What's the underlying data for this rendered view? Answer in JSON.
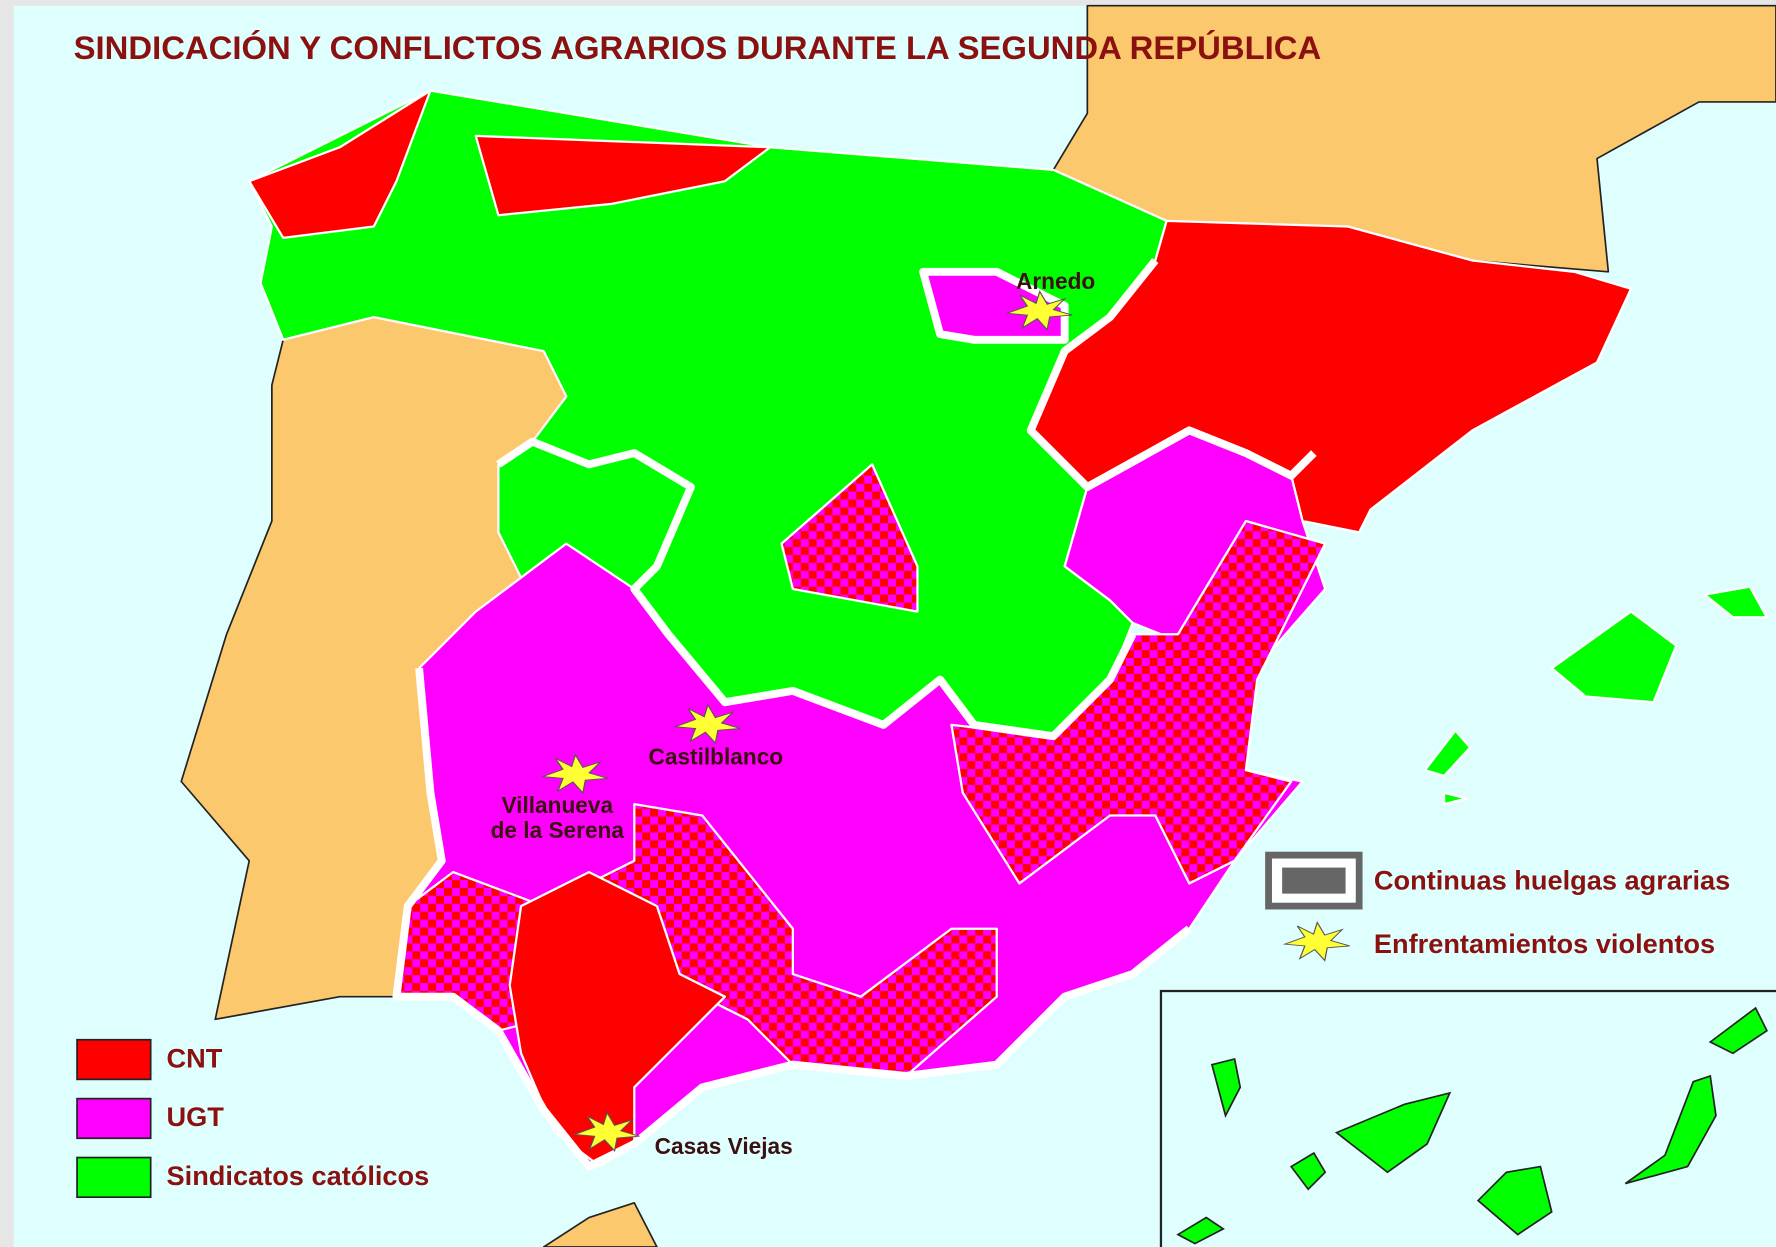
{
  "title": "SINDICACIÓN Y CONFLICTOS AGRARIOS DURANTE LA SEGUNDA REPÚBLICA",
  "legend": [
    {
      "label": "CNT",
      "color": "#ff0000"
    },
    {
      "label": "UGT",
      "color": "#ff00ff"
    },
    {
      "label": "Sindicatos católicos",
      "color": "#00ff00"
    }
  ],
  "key": [
    "Continuas huelgas agrarias",
    "Enfrentamientos violentos"
  ],
  "places": [
    {
      "lines": [
        "Arnedo"
      ]
    },
    {
      "lines": [
        "Castilblanco"
      ]
    },
    {
      "lines": [
        "Villanueva",
        "de la Serena"
      ]
    },
    {
      "lines": [
        "Casas Viejas"
      ]
    }
  ]
}
